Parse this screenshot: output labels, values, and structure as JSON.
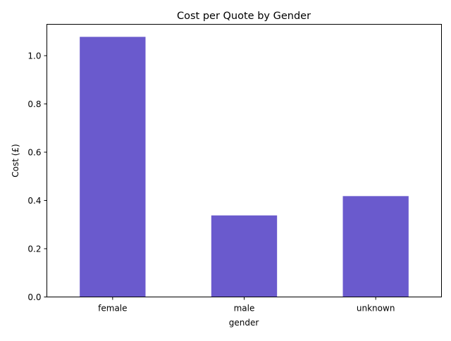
{
  "chart_data": {
    "type": "bar",
    "title": "Cost per Quote by Gender",
    "xlabel": "gender",
    "ylabel": "Cost (£)",
    "categories": [
      "female",
      "male",
      "unknown"
    ],
    "values": [
      1.078,
      0.338,
      0.418
    ],
    "ylim": [
      0,
      1.13
    ],
    "yticks": [
      0.0,
      0.2,
      0.4,
      0.6,
      0.8,
      1.0
    ],
    "ytick_labels": [
      "0.0",
      "0.2",
      "0.4",
      "0.6",
      "0.8",
      "1.0"
    ],
    "bar_color": "#6a5acd",
    "grid": false,
    "legend": "none"
  }
}
